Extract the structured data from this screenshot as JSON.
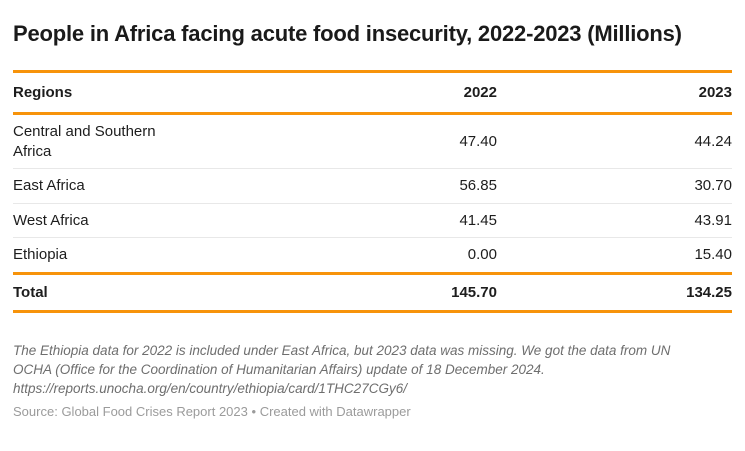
{
  "header": {
    "title": "People in Africa facing acute food insecurity, 2022-2023 (Millions)"
  },
  "chart_data": {
    "type": "table",
    "title": "People in Africa facing acute food insecurity, 2022-2023 (Millions)",
    "columns": [
      "Regions",
      "2022",
      "2023"
    ],
    "rows": [
      {
        "region": "Central and Southern Africa",
        "values": [
          "47.40",
          "44.24"
        ]
      },
      {
        "region": "East Africa",
        "values": [
          "56.85",
          "30.70"
        ]
      },
      {
        "region": "West Africa",
        "values": [
          "41.45",
          "43.91"
        ]
      },
      {
        "region": "Ethiopia",
        "values": [
          "0.00",
          "15.40"
        ]
      }
    ],
    "total": {
      "label": "Total",
      "values": [
        "145.70",
        "134.25"
      ]
    }
  },
  "footer": {
    "note": "The Ethiopia data for 2022 is included under East Africa, but 2023 data was missing. We got the data from UN OCHA (Office for the Coordination of Humanitarian Affairs) update of 18 December 2024.",
    "note_url": "https://reports.unocha.org/en/country/ethiopia/card/1THC27CGy6/",
    "source_label": "Source:",
    "source_name": "Global Food Crises Report 2023",
    "separator": "•",
    "credit": "Created with Datawrapper"
  },
  "colors": {
    "accent": "#F7930A",
    "row_divider": "#e8e8e8",
    "title_text": "#1a1a1a",
    "body_text": "#1d1d1d",
    "footnote_text": "#6e6e6e",
    "source_text": "#9b9b9b"
  }
}
